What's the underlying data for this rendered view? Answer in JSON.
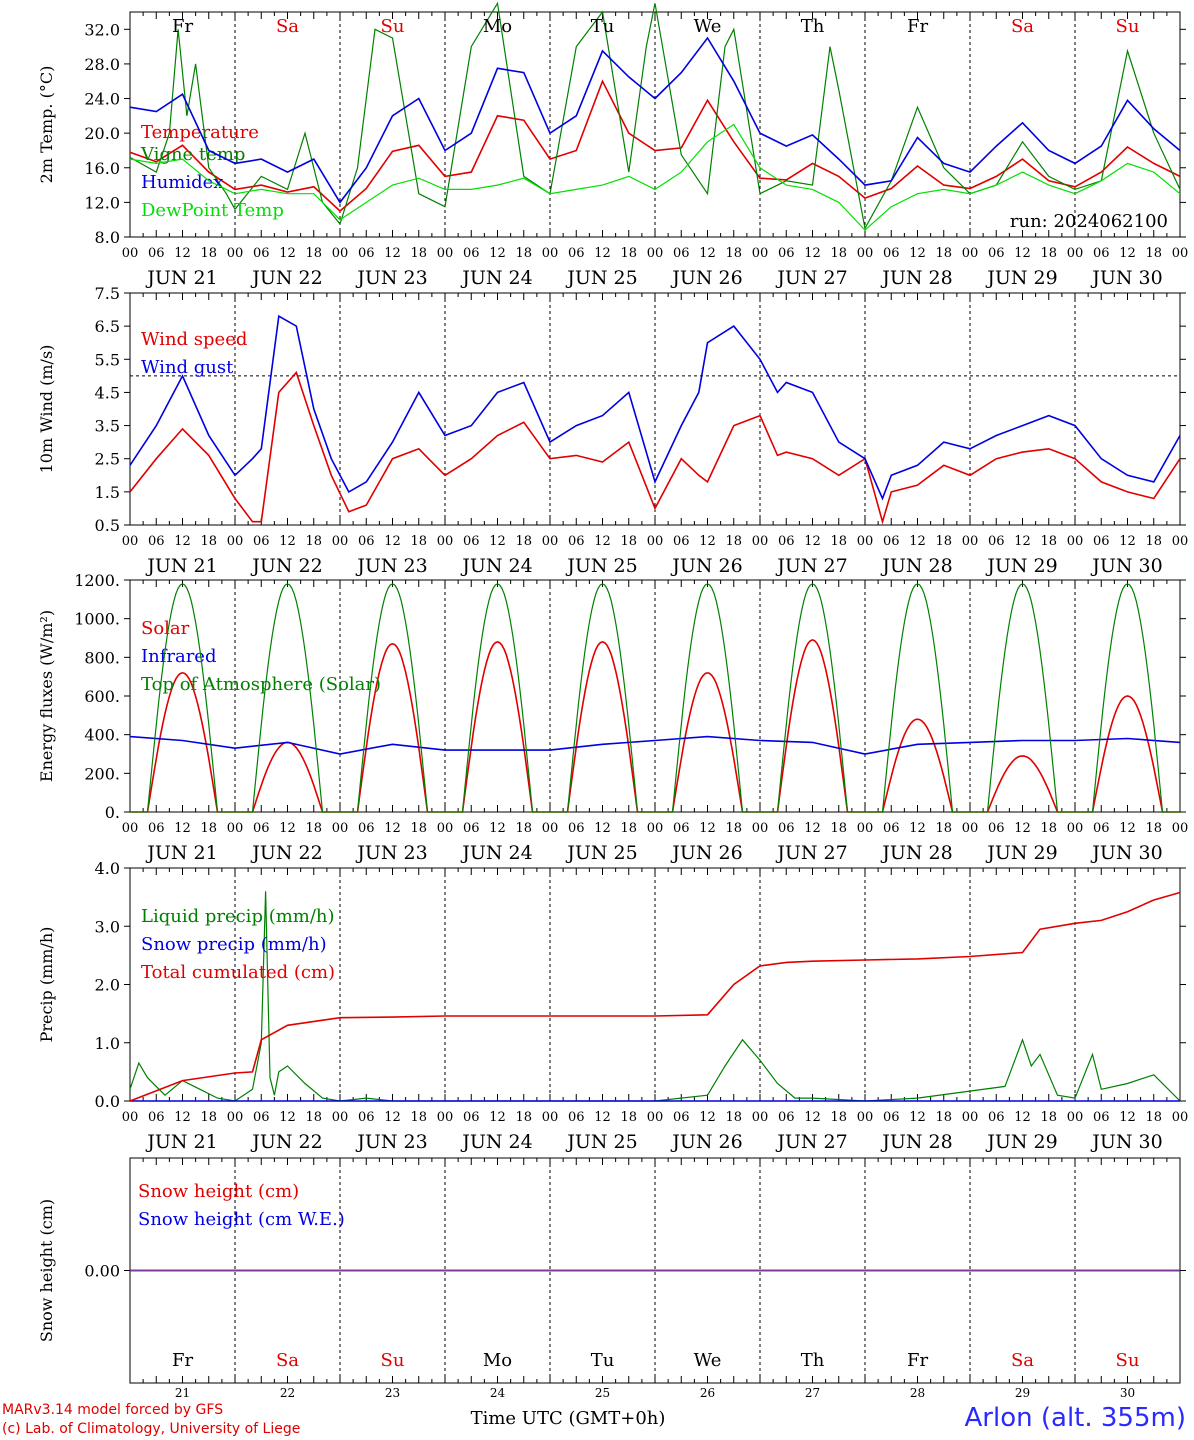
{
  "run_label": "run: 2024062100",
  "station": "Arlon (alt. 355m)",
  "credits": [
    "MARv3.14 model forced by GFS",
    "(c) Lab. of Climatology, University of Liege"
  ],
  "time_axis": {
    "title": "Time UTC (GMT+0h)",
    "hour_ticks": [
      "00",
      "06",
      "12",
      "18"
    ],
    "date_labels": [
      "JUN 21",
      "JUN 22",
      "JUN 23",
      "JUN 24",
      "JUN 25",
      "JUN 26",
      "JUN 27",
      "JUN 28",
      "JUN 29",
      "JUN 30"
    ],
    "weekdays": [
      "Fr",
      "Sa",
      "Su",
      "Mo",
      "Tu",
      "We",
      "Th",
      "Fr",
      "Sa",
      "Su"
    ],
    "weekend_color": "#e00000",
    "weekday_color": "#000000",
    "day_numbers": [
      "21",
      "22",
      "23",
      "24",
      "25",
      "26",
      "27",
      "28",
      "29",
      "30"
    ]
  },
  "chart_data": [
    {
      "type": "line",
      "ylabel": "2m Temp. (°C)",
      "ylim": [
        8,
        34
      ],
      "ytick_labels": [
        "8.0",
        "12.0",
        "16.0",
        "20.0",
        "24.0",
        "28.0",
        "32.0"
      ],
      "grid": "vertical dashed at midnight",
      "legend_placement": "left",
      "x_unit": "hours since JUN 21 00 UTC",
      "series": [
        {
          "name": "Temperature",
          "color": "#e00000",
          "x": [
            0,
            6,
            12,
            18,
            24,
            30,
            36,
            42,
            48,
            54,
            60,
            66,
            72,
            78,
            84,
            90,
            96,
            102,
            108,
            114,
            120,
            126,
            132,
            138,
            144,
            150,
            156,
            162,
            168,
            174,
            180,
            186,
            192,
            198,
            204,
            210,
            216,
            222,
            228,
            234,
            240
          ],
          "values": [
            17.8,
            16.7,
            18.6,
            15.5,
            13.5,
            14.0,
            13.2,
            13.8,
            11.0,
            13.6,
            17.9,
            18.6,
            15.0,
            15.5,
            22.0,
            21.5,
            17.0,
            18.0,
            26.0,
            20.0,
            18.0,
            18.3,
            23.8,
            19.0,
            14.8,
            14.6,
            16.5,
            15.0,
            12.5,
            13.6,
            16.2,
            14.0,
            13.6,
            15.0,
            17.0,
            14.5,
            13.8,
            15.5,
            18.4,
            16.5,
            15.0
          ]
        },
        {
          "name": "Vigne temp",
          "color": "#008000",
          "x": [
            0,
            6,
            9,
            11,
            13,
            15,
            18,
            22,
            24,
            30,
            36,
            40,
            44,
            48,
            52,
            56,
            60,
            66,
            72,
            78,
            84,
            90,
            96,
            102,
            108,
            114,
            118,
            120,
            126,
            132,
            136,
            138,
            144,
            150,
            156,
            160,
            162,
            168,
            174,
            180,
            186,
            192,
            198,
            204,
            210,
            216,
            222,
            228,
            234,
            240
          ],
          "values": [
            17.2,
            15.5,
            20.0,
            32.0,
            22.0,
            28.0,
            16.0,
            13.0,
            11.2,
            15.0,
            13.5,
            20.0,
            12.0,
            9.5,
            16.0,
            32.0,
            31.0,
            13.0,
            11.5,
            30.0,
            35.0,
            15.0,
            13.0,
            30.0,
            34.0,
            15.5,
            30.0,
            35.0,
            17.5,
            13.0,
            30.0,
            32.0,
            13.0,
            14.5,
            14.0,
            30.0,
            25.0,
            9.0,
            14.5,
            23.0,
            16.0,
            13.0,
            14.0,
            19.0,
            15.0,
            13.5,
            14.5,
            29.5,
            20.0,
            13.5
          ]
        },
        {
          "name": "Humidex",
          "color": "#0000e0",
          "x": [
            0,
            6,
            12,
            18,
            24,
            30,
            36,
            42,
            48,
            54,
            60,
            66,
            72,
            78,
            84,
            90,
            96,
            102,
            108,
            114,
            120,
            126,
            132,
            138,
            144,
            150,
            156,
            162,
            168,
            174,
            180,
            186,
            192,
            198,
            204,
            210,
            216,
            222,
            228,
            234,
            240
          ],
          "values": [
            23.0,
            22.5,
            24.5,
            18.0,
            16.5,
            17.0,
            15.5,
            17.0,
            12.0,
            16.0,
            22.0,
            24.0,
            18.0,
            20.0,
            27.5,
            27.0,
            20.0,
            22.0,
            29.5,
            26.5,
            24.0,
            27.0,
            31.0,
            26.0,
            20.0,
            18.5,
            19.8,
            17.0,
            14.0,
            14.5,
            19.5,
            16.5,
            15.5,
            18.5,
            21.2,
            18.0,
            16.5,
            18.5,
            23.8,
            20.5,
            18.0
          ]
        },
        {
          "name": "DewPoint Temp",
          "color": "#00e000",
          "x": [
            0,
            6,
            12,
            18,
            24,
            30,
            36,
            42,
            48,
            54,
            60,
            66,
            72,
            78,
            84,
            90,
            96,
            102,
            108,
            114,
            120,
            126,
            132,
            138,
            144,
            150,
            156,
            162,
            168,
            174,
            180,
            186,
            192,
            198,
            204,
            210,
            216,
            222,
            228,
            234,
            240
          ],
          "values": [
            17.0,
            16.5,
            17.0,
            14.5,
            13.0,
            13.5,
            13.0,
            13.0,
            10.0,
            12.0,
            14.0,
            14.8,
            13.5,
            13.5,
            14.0,
            14.8,
            13.0,
            13.5,
            14.0,
            15.0,
            13.5,
            15.5,
            19.0,
            21.0,
            16.0,
            14.0,
            13.5,
            12.0,
            8.8,
            11.5,
            13.0,
            13.5,
            13.0,
            14.0,
            15.5,
            14.0,
            13.0,
            14.5,
            16.5,
            15.5,
            13.0
          ]
        }
      ]
    },
    {
      "type": "line",
      "ylabel": "10m Wind (m/s)",
      "ylim": [
        0.5,
        7.5
      ],
      "ytick_labels": [
        "0.5",
        "1.5",
        "2.5",
        "3.5",
        "4.5",
        "5.5",
        "6.5",
        "7.5"
      ],
      "reference_line": 5.0,
      "legend_placement": "left",
      "x_unit": "hours since JUN 21 00 UTC",
      "series": [
        {
          "name": "Wind speed",
          "color": "#e00000",
          "x": [
            0,
            6,
            12,
            18,
            24,
            28,
            30,
            34,
            38,
            42,
            46,
            50,
            54,
            60,
            66,
            72,
            78,
            84,
            90,
            96,
            102,
            108,
            114,
            120,
            126,
            130,
            132,
            138,
            144,
            148,
            150,
            156,
            162,
            168,
            172,
            174,
            180,
            186,
            192,
            198,
            204,
            210,
            216,
            222,
            228,
            234,
            240
          ],
          "values": [
            1.5,
            2.5,
            3.4,
            2.6,
            1.3,
            0.6,
            0.6,
            4.5,
            5.1,
            3.5,
            2.0,
            0.9,
            1.1,
            2.5,
            2.8,
            2.0,
            2.5,
            3.2,
            3.6,
            2.5,
            2.6,
            2.4,
            3.0,
            1.0,
            2.5,
            2.0,
            1.8,
            3.5,
            3.8,
            2.6,
            2.7,
            2.5,
            2.0,
            2.5,
            0.6,
            1.5,
            1.7,
            2.3,
            2.0,
            2.5,
            2.7,
            2.8,
            2.5,
            1.8,
            1.5,
            1.3,
            2.5
          ]
        },
        {
          "name": "Wind gust",
          "color": "#0000e0",
          "x": [
            0,
            6,
            12,
            18,
            24,
            28,
            30,
            34,
            38,
            42,
            46,
            50,
            54,
            60,
            66,
            72,
            78,
            84,
            90,
            96,
            102,
            108,
            114,
            120,
            126,
            130,
            132,
            138,
            144,
            148,
            150,
            156,
            162,
            168,
            172,
            174,
            180,
            186,
            192,
            198,
            204,
            210,
            216,
            222,
            228,
            234,
            240
          ],
          "values": [
            2.3,
            3.5,
            5.0,
            3.2,
            2.0,
            2.5,
            2.8,
            6.8,
            6.5,
            4.0,
            2.5,
            1.5,
            1.8,
            3.0,
            4.5,
            3.2,
            3.5,
            4.5,
            4.8,
            3.0,
            3.5,
            3.8,
            4.5,
            1.8,
            3.5,
            4.5,
            6.0,
            6.5,
            5.5,
            4.5,
            4.8,
            4.5,
            3.0,
            2.5,
            1.3,
            2.0,
            2.3,
            3.0,
            2.8,
            3.2,
            3.5,
            3.8,
            3.5,
            2.5,
            2.0,
            1.8,
            3.2
          ]
        }
      ]
    },
    {
      "type": "line",
      "ylabel": "Energy fluxes (W/m²)",
      "ylim": [
        0,
        1200
      ],
      "ytick_labels": [
        "0.",
        "200.",
        "400.",
        "600.",
        "800.",
        "1000.",
        "1200."
      ],
      "legend_placement": "left",
      "x_unit": "hours since JUN 21 00 UTC",
      "series": [
        {
          "name": "Solar",
          "color": "#e00000",
          "daily_peak": [
            720,
            360,
            870,
            880,
            880,
            720,
            890,
            480,
            290,
            600
          ]
        },
        {
          "name": "Infrared",
          "color": "#0000e0",
          "x": [
            0,
            12,
            24,
            36,
            48,
            60,
            72,
            84,
            96,
            108,
            120,
            132,
            144,
            156,
            168,
            180,
            192,
            204,
            216,
            228,
            240
          ],
          "values": [
            390,
            370,
            330,
            360,
            300,
            350,
            320,
            320,
            320,
            350,
            370,
            390,
            370,
            360,
            300,
            350,
            360,
            370,
            370,
            380,
            360
          ]
        },
        {
          "name": "Top of Atmosphere (Solar)",
          "color": "#008000",
          "daily_peak": [
            1180,
            1180,
            1180,
            1180,
            1180,
            1180,
            1180,
            1180,
            1180,
            1180
          ]
        }
      ]
    },
    {
      "type": "line",
      "ylabel": "Precip (mm/h)",
      "ylim": [
        0,
        4
      ],
      "ytick_labels": [
        "0.0",
        "1.0",
        "2.0",
        "3.0",
        "4.0"
      ],
      "legend_placement": "left",
      "x_unit": "hours since JUN 21 00 UTC",
      "series": [
        {
          "name": "Liquid precip (mm/h)",
          "color": "#008000",
          "x": [
            0,
            2,
            4,
            8,
            12,
            16,
            20,
            24,
            28,
            30,
            31,
            32,
            33,
            34,
            36,
            40,
            44,
            48,
            54,
            60,
            66,
            72,
            96,
            120,
            132,
            136,
            140,
            144,
            148,
            152,
            156,
            168,
            180,
            200,
            204,
            206,
            208,
            212,
            216,
            220,
            222,
            228,
            234,
            240
          ],
          "values": [
            0.2,
            0.65,
            0.4,
            0.1,
            0.35,
            0.2,
            0.05,
            0.0,
            0.2,
            1.0,
            3.6,
            0.4,
            0.1,
            0.5,
            0.6,
            0.3,
            0.05,
            0.0,
            0.05,
            0.0,
            0.0,
            0.0,
            0.0,
            0.0,
            0.1,
            0.6,
            1.05,
            0.7,
            0.3,
            0.05,
            0.05,
            0.0,
            0.05,
            0.25,
            1.05,
            0.6,
            0.8,
            0.1,
            0.05,
            0.8,
            0.2,
            0.3,
            0.45,
            0.0
          ]
        },
        {
          "name": "Snow precip (mm/h)",
          "color": "#0000e0",
          "x": [
            0,
            240
          ],
          "values": [
            0,
            0
          ]
        },
        {
          "name": "Total cumulated (cm)",
          "color": "#e00000",
          "x": [
            0,
            12,
            24,
            28,
            30,
            36,
            48,
            60,
            72,
            96,
            120,
            132,
            138,
            144,
            150,
            156,
            168,
            180,
            192,
            204,
            208,
            216,
            222,
            228,
            234,
            240
          ],
          "values": [
            0.0,
            0.35,
            0.48,
            0.5,
            1.05,
            1.3,
            1.43,
            1.44,
            1.46,
            1.46,
            1.46,
            1.48,
            2.0,
            2.32,
            2.38,
            2.4,
            2.42,
            2.44,
            2.48,
            2.55,
            2.95,
            3.05,
            3.1,
            3.25,
            3.45,
            3.58
          ]
        }
      ]
    },
    {
      "type": "line",
      "ylabel": "Snow height (cm)",
      "ytick_labels": [
        "0.00"
      ],
      "legend_placement": "left",
      "series": [
        {
          "name": "Snow height (cm)",
          "color": "#e00000",
          "x": [
            0,
            240
          ],
          "values": [
            0,
            0
          ]
        },
        {
          "name": "Snow height (cm W.E.)",
          "color": "#0000e0",
          "x": [
            0,
            240
          ],
          "values": [
            0,
            0
          ]
        }
      ]
    }
  ]
}
